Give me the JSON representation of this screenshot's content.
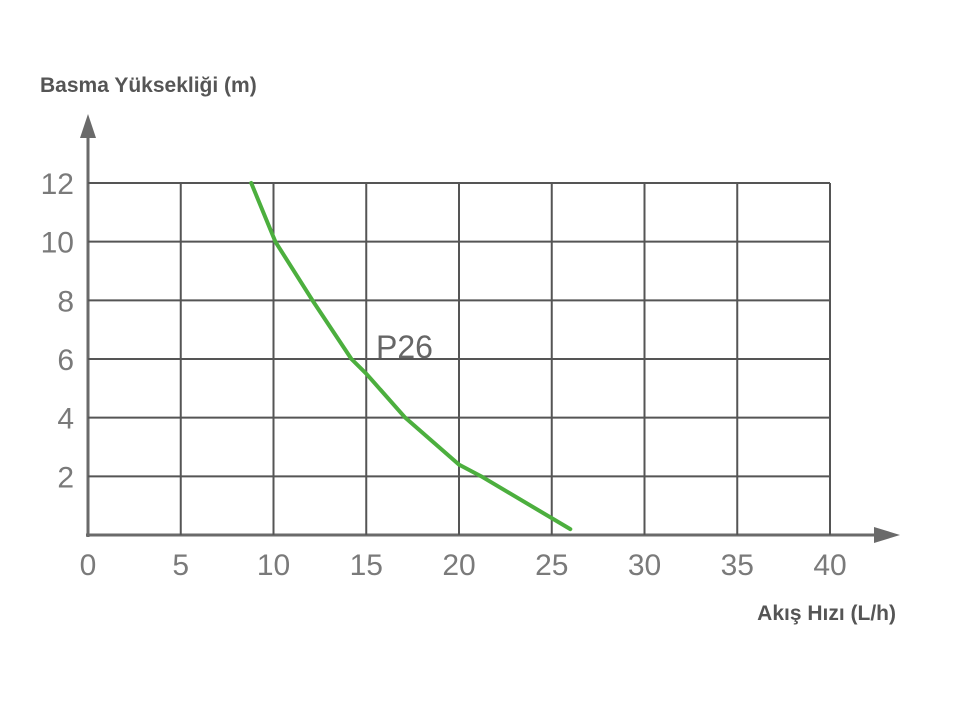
{
  "chart_data": {
    "type": "line",
    "y_label": "Basma Yüksekliği (m)",
    "x_label": "Akış Hızı (L/h)",
    "xlim": [
      0,
      40
    ],
    "ylim": [
      0,
      12
    ],
    "xticks": [
      0,
      5,
      10,
      15,
      20,
      25,
      30,
      35,
      40
    ],
    "yticks": [
      2,
      4,
      6,
      8,
      10,
      12
    ],
    "grid": true,
    "series": [
      {
        "name": "P26",
        "color": "#4caf3e",
        "x": [
          8.8,
          10.1,
          12.1,
          14.2,
          15,
          17.1,
          20,
          21.2,
          26.0
        ],
        "values": [
          12,
          10,
          8,
          6,
          5.5,
          4,
          2.4,
          2,
          0.2
        ]
      }
    ]
  }
}
